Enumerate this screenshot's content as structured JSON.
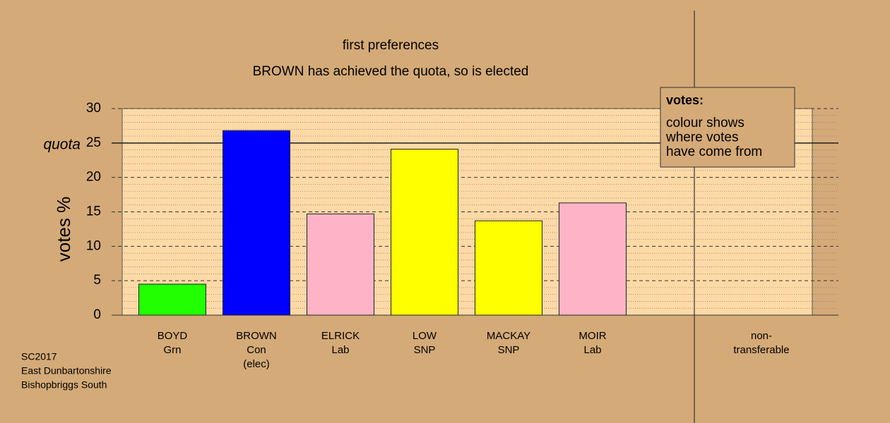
{
  "chart_data": {
    "type": "bar",
    "title": "first preferences",
    "subtitle": "BROWN has achieved the quota, so is elected",
    "y_label": "votes %",
    "categories": [
      [
        "BOYD",
        "Grn"
      ],
      [
        "BROWN",
        "Con",
        "(elec)"
      ],
      [
        "ELRICK",
        "Lab"
      ],
      [
        "LOW",
        "SNP"
      ],
      [
        "MACKAY",
        "SNP"
      ],
      [
        "MOIR",
        "Lab"
      ],
      [
        "non-",
        "transferable"
      ]
    ],
    "values": [
      4.5,
      26.8,
      14.7,
      24.1,
      13.7,
      16.3,
      null
    ],
    "colors": [
      "#22ff00",
      "#0000ff",
      "#ffb3c6",
      "#ffff00",
      "#ffff00",
      "#ffb3c6",
      null
    ],
    "ylim": [
      0,
      30
    ],
    "yticks": [
      0,
      5,
      10,
      15,
      20,
      25,
      30
    ],
    "grid": true,
    "quota": 25,
    "quota_label": "quota",
    "legend": {
      "title": "votes:",
      "lines": [
        "colour shows",
        "where votes",
        "have come from"
      ]
    },
    "footer": [
      "SC2017",
      "East Dunbartonshire",
      "Bishopbriggs South"
    ]
  }
}
